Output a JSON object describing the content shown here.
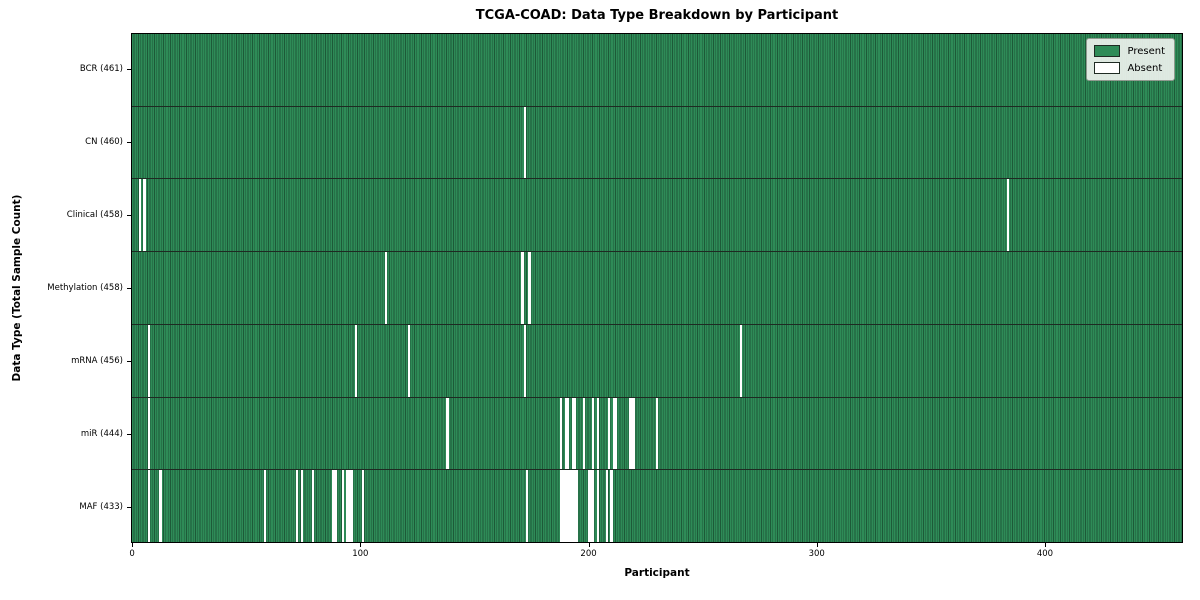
{
  "title": "TCGA-COAD: Data Type Breakdown by Participant",
  "xlabel": "Participant",
  "ylabel": "Data Type (Total Sample Count)",
  "legend": {
    "present_label": "Present",
    "absent_label": "Absent"
  },
  "colors": {
    "present_fill": "#2e8b57",
    "present_edge": "#1d5a38",
    "absent_fill": "#ffffff",
    "figure_background": "#ffffff"
  },
  "chart_data": {
    "type": "heatmap",
    "title": "TCGA-COAD: Data Type Breakdown by Participant",
    "xlabel": "Participant",
    "ylabel": "Data Type (Total Sample Count)",
    "n_participants": 461,
    "x_ticks": [
      0,
      100,
      200,
      300,
      400
    ],
    "legend_entries": [
      "Present",
      "Absent"
    ],
    "legend_position": "upper right",
    "grid": false,
    "cell_values": "1 = present (green), 0 = absent (white); rows list absent participant indices only",
    "rows": [
      {
        "label": "BCR (461)",
        "data_type": "BCR",
        "total_samples": 461,
        "absent_participants": []
      },
      {
        "label": "CN (460)",
        "data_type": "CN",
        "total_samples": 460,
        "absent_participants": [
          172
        ]
      },
      {
        "label": "Clinical (458)",
        "data_type": "Clinical",
        "total_samples": 458,
        "absent_participants": [
          3,
          5,
          384
        ]
      },
      {
        "label": "Methylation (458)",
        "data_type": "Methylation",
        "total_samples": 458,
        "absent_participants": [
          111,
          171,
          174
        ]
      },
      {
        "label": "mRNA (456)",
        "data_type": "mRNA",
        "total_samples": 456,
        "absent_participants": [
          7,
          98,
          121,
          172,
          267
        ]
      },
      {
        "label": "miR (444)",
        "data_type": "miR",
        "total_samples": 444,
        "absent_participants": [
          7,
          138,
          188,
          190,
          191,
          193,
          194,
          198,
          202,
          204,
          209,
          211,
          212,
          218,
          219,
          220,
          230
        ]
      },
      {
        "label": "MAF (433)",
        "data_type": "MAF",
        "total_samples": 433,
        "absent_participants": [
          7,
          12,
          58,
          72,
          74,
          79,
          88,
          89,
          92,
          94,
          95,
          96,
          101,
          173,
          188,
          189,
          190,
          191,
          192,
          193,
          194,
          195,
          200,
          201,
          202,
          204,
          208,
          210
        ]
      }
    ]
  }
}
